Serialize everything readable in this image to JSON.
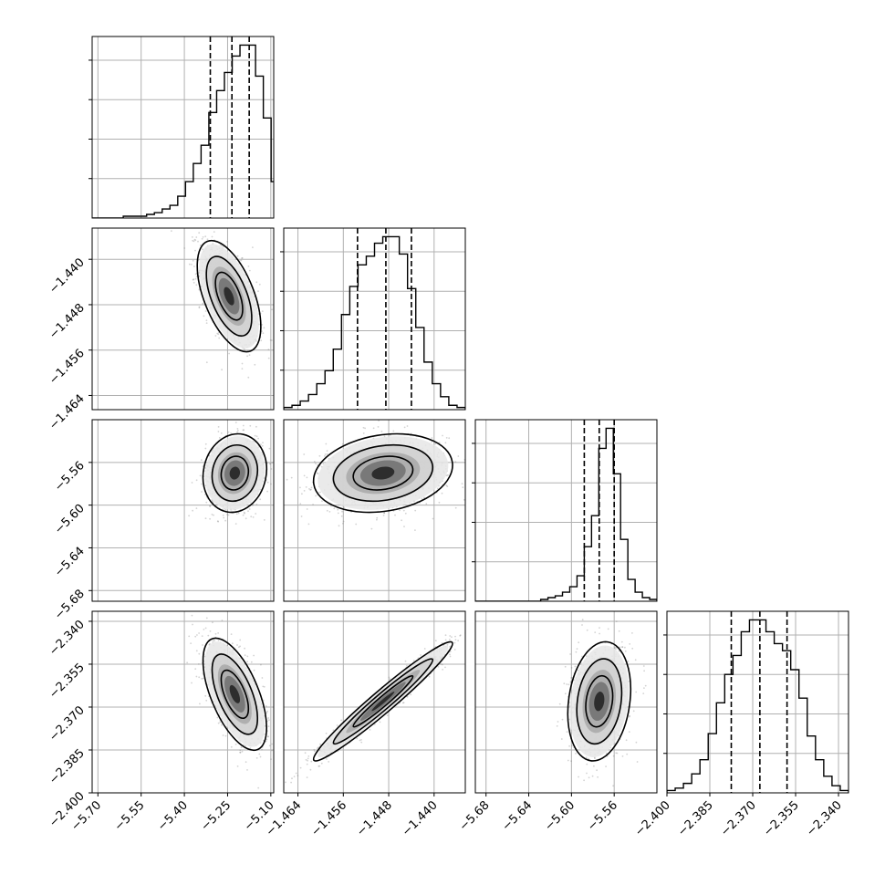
{
  "chart_data": {
    "type": "corner",
    "parameters": [
      {
        "range": [
          -5.72,
          -5.09
        ],
        "ticks": [
          -5.7,
          -5.55,
          -5.4,
          -5.25,
          -5.1
        ],
        "tick_labels": [
          "−5.70",
          "−5.55",
          "−5.40",
          "−5.25",
          "−5.10"
        ],
        "quantiles": [
          -5.31,
          -5.235,
          -5.175
        ],
        "hist_edges": [
          -5.72,
          -5.045
        ],
        "hist_counts": [
          0,
          0,
          0,
          0,
          1,
          1,
          1,
          2,
          3,
          5,
          7,
          12,
          20,
          30,
          40,
          58,
          70,
          80,
          89,
          95,
          95,
          78,
          55,
          20,
          3
        ]
      },
      {
        "range": [
          -1.4665,
          -1.4345
        ],
        "ticks": [
          -1.464,
          -1.456,
          -1.448,
          -1.44
        ],
        "tick_labels": [
          "−1.464",
          "−1.456",
          "−1.448",
          "−1.440"
        ],
        "quantiles": [
          -1.4535,
          -1.4485,
          -1.444
        ],
        "hist_edges": [
          -1.4665,
          -1.4345
        ],
        "hist_counts": [
          1,
          2,
          4,
          7,
          12,
          18,
          28,
          44,
          57,
          67,
          71,
          77,
          80,
          80,
          72,
          56,
          38,
          22,
          12,
          6,
          2,
          1
        ]
      },
      {
        "range": [
          -5.69,
          -5.52
        ],
        "ticks": [
          -5.68,
          -5.64,
          -5.6,
          -5.56
        ],
        "tick_labels": [
          "−5.68",
          "−5.64",
          "−5.60",
          "−5.56"
        ],
        "quantiles": [
          -5.588,
          -5.574,
          -5.56
        ],
        "hist_edges": [
          -5.69,
          -5.52
        ],
        "hist_counts": [
          0,
          0,
          0,
          0,
          0,
          0,
          0,
          0,
          0,
          1,
          2,
          3,
          5,
          8,
          14,
          30,
          47,
          84,
          95,
          70,
          34,
          12,
          5,
          2,
          1
        ]
      },
      {
        "range": [
          -2.4,
          -2.3365
        ],
        "ticks": [
          -2.4,
          -2.385,
          -2.37,
          -2.355,
          -2.34
        ],
        "tick_labels": [
          "−2.400",
          "−2.385",
          "−2.370",
          "−2.355",
          "−2.340"
        ],
        "quantiles": [
          -2.3775,
          -2.3675,
          -2.358
        ],
        "hist_edges": [
          -2.4,
          -2.3365
        ],
        "hist_counts": [
          1,
          2,
          4,
          8,
          14,
          25,
          38,
          50,
          58,
          68,
          73,
          73,
          68,
          63,
          60,
          52,
          40,
          24,
          14,
          7,
          3,
          1
        ]
      }
    ],
    "pairs": [
      {
        "x": 0,
        "y": 1,
        "center": [
          -5.245,
          -1.4465
        ],
        "sigma": [
          0.045,
          0.004
        ],
        "rho": -0.55
      },
      {
        "x": 0,
        "y": 2,
        "center": [
          -5.225,
          -5.57
        ],
        "sigma": [
          0.045,
          0.015
        ],
        "rho": 0.1
      },
      {
        "x": 0,
        "y": 3,
        "center": [
          -5.225,
          -2.3655
        ],
        "sigma": [
          0.045,
          0.008
        ],
        "rho": -0.6
      },
      {
        "x": 1,
        "y": 2,
        "center": [
          -1.449,
          -5.57
        ],
        "sigma": [
          0.005,
          0.015
        ],
        "rho": 0.2
      },
      {
        "x": 1,
        "y": 3,
        "center": [
          -1.449,
          -2.368
        ],
        "sigma": [
          0.005,
          0.0085
        ],
        "rho": 0.97
      },
      {
        "x": 2,
        "y": 3,
        "center": [
          -5.574,
          -2.368
        ],
        "sigma": [
          0.012,
          0.0085
        ],
        "rho": 0.2
      }
    ],
    "grid": true,
    "colors": {
      "ink": "#000000",
      "grid": "#b0b0b0",
      "points": "#808080"
    }
  }
}
